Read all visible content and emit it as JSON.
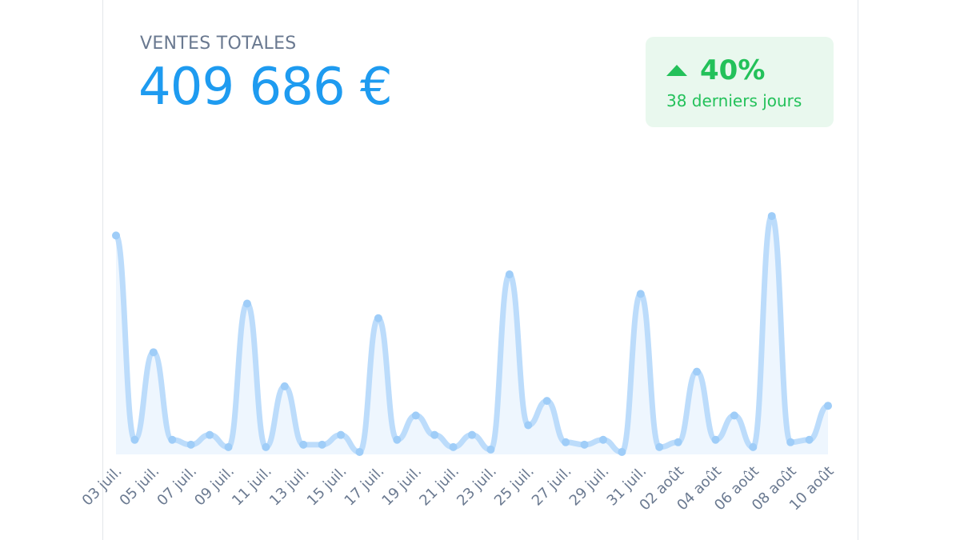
{
  "header": {
    "title": "VENTES TOTALES",
    "total": "409 686 €"
  },
  "badge": {
    "change": "40%",
    "period": "38 derniers jours",
    "icon": "triangle-up-icon",
    "color": "#23c15a",
    "background": "#e9f8ee"
  },
  "chart_data": {
    "type": "area",
    "title": "VENTES TOTALES",
    "xlabel": "",
    "ylabel": "",
    "grid": false,
    "legend": "none",
    "color": "#bcdcfb",
    "fill": "#eef6fe",
    "ylim": [
      0,
      100
    ],
    "tick_labels": [
      "03 juil.",
      "05 juil.",
      "07 juil.",
      "09 juil.",
      "11 juil.",
      "13 juil.",
      "15 juil.",
      "17 juil.",
      "19 juil.",
      "21 juil.",
      "23 juil.",
      "25 juil.",
      "27 juil.",
      "29 juil.",
      "31 juil.",
      "02 août",
      "04 août",
      "06 août",
      "08 août",
      "10 août"
    ],
    "x": [
      "03 juil.",
      "04 juil.",
      "05 juil.",
      "06 juil.",
      "07 juil.",
      "08 juil.",
      "09 juil.",
      "10 juil.",
      "11 juil.",
      "12 juil.",
      "13 juil.",
      "14 juil.",
      "15 juil.",
      "16 juil.",
      "17 juil.",
      "18 juil.",
      "19 juil.",
      "20 juil.",
      "21 juil.",
      "22 juil.",
      "23 juil.",
      "24 juil.",
      "25 juil.",
      "26 juil.",
      "27 juil.",
      "28 juil.",
      "29 juil.",
      "30 juil.",
      "31 juil.",
      "01 août",
      "02 août",
      "03 août",
      "04 août",
      "05 août",
      "06 août",
      "07 août",
      "08 août",
      "09 août",
      "10 août"
    ],
    "values": [
      90,
      6,
      42,
      6,
      4,
      8,
      3,
      62,
      3,
      28,
      4,
      4,
      8,
      1,
      56,
      6,
      16,
      8,
      3,
      8,
      2,
      74,
      12,
      22,
      5,
      4,
      6,
      1,
      66,
      3,
      5,
      34,
      6,
      16,
      3,
      98,
      5,
      6,
      20
    ]
  }
}
